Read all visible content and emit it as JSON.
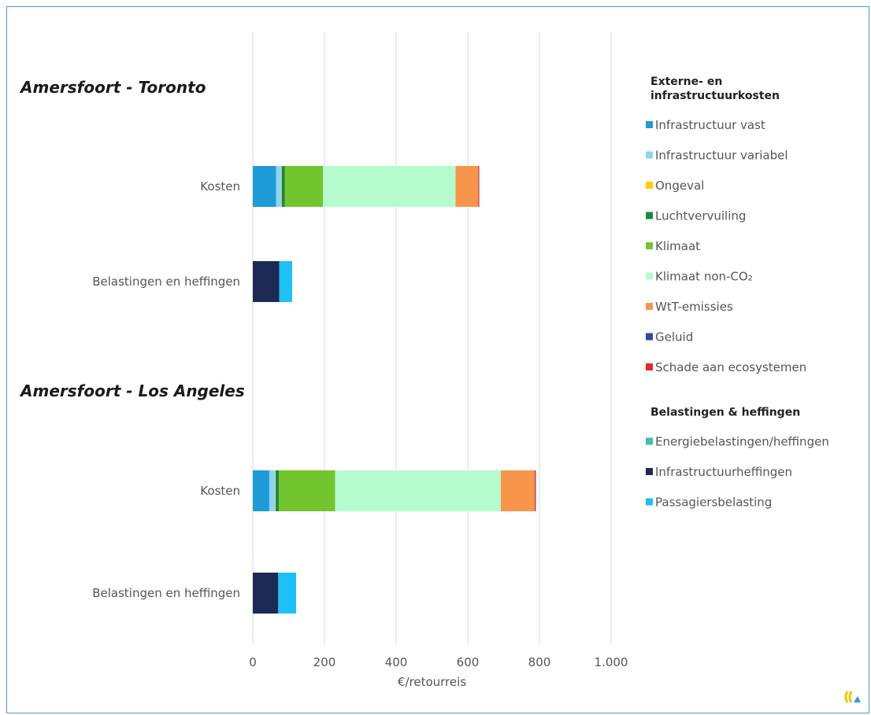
{
  "chart_data": {
    "type": "bar",
    "orientation": "horizontal",
    "stacked": true,
    "xlabel": "€/retourreis",
    "xlim": [
      0,
      1000
    ],
    "x_ticks": [
      0,
      200,
      400,
      600,
      800,
      1000
    ],
    "x_tick_labels": [
      "0",
      "200",
      "400",
      "600",
      "800",
      "1.000"
    ],
    "grid": true,
    "legend_placement": "right",
    "groups": [
      {
        "title": "Amersfoort - Toronto",
        "bars": [
          {
            "label": "Kosten",
            "segments": [
              {
                "series": "Infrastructuur vast",
                "value": 65
              },
              {
                "series": "Infrastructuur variabel",
                "value": 15
              },
              {
                "series": "Ongeval",
                "value": 1
              },
              {
                "series": "Luchtvervuiling",
                "value": 8
              },
              {
                "series": "Klimaat",
                "value": 107
              },
              {
                "series": "Klimaat non-CO₂",
                "value": 370
              },
              {
                "series": "WtT-emissies",
                "value": 63
              },
              {
                "series": "Geluid",
                "value": 1
              },
              {
                "series": "Schade aan ecosystemen",
                "value": 2
              }
            ]
          },
          {
            "label": "Belastingen en heffingen",
            "segments": [
              {
                "series": "Energiebelastingen/heffingen",
                "value": 0
              },
              {
                "series": "Infrastructuurheffingen",
                "value": 74
              },
              {
                "series": "Passagiersbelasting",
                "value": 36
              }
            ]
          }
        ]
      },
      {
        "title": "Amersfoort - Los Angeles",
        "bars": [
          {
            "label": "Kosten",
            "segments": [
              {
                "series": "Infrastructuur vast",
                "value": 46
              },
              {
                "series": "Infrastructuur variabel",
                "value": 17
              },
              {
                "series": "Ongeval",
                "value": 1
              },
              {
                "series": "Luchtvervuiling",
                "value": 9
              },
              {
                "series": "Klimaat",
                "value": 157
              },
              {
                "series": "Klimaat non-CO₂",
                "value": 462
              },
              {
                "series": "WtT-emissies",
                "value": 95
              },
              {
                "series": "Geluid",
                "value": 1
              },
              {
                "series": "Schade aan ecosystemen",
                "value": 2
              }
            ]
          },
          {
            "label": "Belastingen en heffingen",
            "segments": [
              {
                "series": "Energiebelastingen/heffingen",
                "value": 0
              },
              {
                "series": "Infrastructuurheffingen",
                "value": 71
              },
              {
                "series": "Passagiersbelasting",
                "value": 50
              }
            ]
          }
        ]
      }
    ],
    "legend": [
      {
        "header": "Externe- en infrastructuurkosten",
        "header_lines": [
          "Externe- en",
          "infrastructuurkosten"
        ],
        "items": [
          {
            "name": "Infrastructuur vast",
            "color": "#1f9bd7"
          },
          {
            "name": "Infrastructuur variabel",
            "color": "#8fd3f4"
          },
          {
            "name": "Ongeval",
            "color": "#ffcc00"
          },
          {
            "name": "Luchtvervuiling",
            "color": "#1a8a3a"
          },
          {
            "name": "Klimaat",
            "color": "#72c52f"
          },
          {
            "name": "Klimaat non-CO₂",
            "color": "#b5fbcd"
          },
          {
            "name": "WtT-emissies",
            "color": "#f7964a"
          },
          {
            "name": "Geluid",
            "color": "#2e4a9c"
          },
          {
            "name": "Schade aan ecosystemen",
            "color": "#e8262a"
          }
        ]
      },
      {
        "header": "Belastingen & heffingen",
        "header_lines": [
          "Belastingen & heffingen"
        ],
        "items": [
          {
            "name": "Energiebelastingen/heffingen",
            "color": "#3fbfb0"
          },
          {
            "name": "Infrastructuurheffingen",
            "color": "#1c2a55"
          },
          {
            "name": "Passagiersbelasting",
            "color": "#1ec0f5"
          }
        ]
      }
    ]
  },
  "logo": {
    "name": "ce-delft-logo-icon",
    "colors": [
      "#f5c400",
      "#2a9fd8"
    ]
  }
}
